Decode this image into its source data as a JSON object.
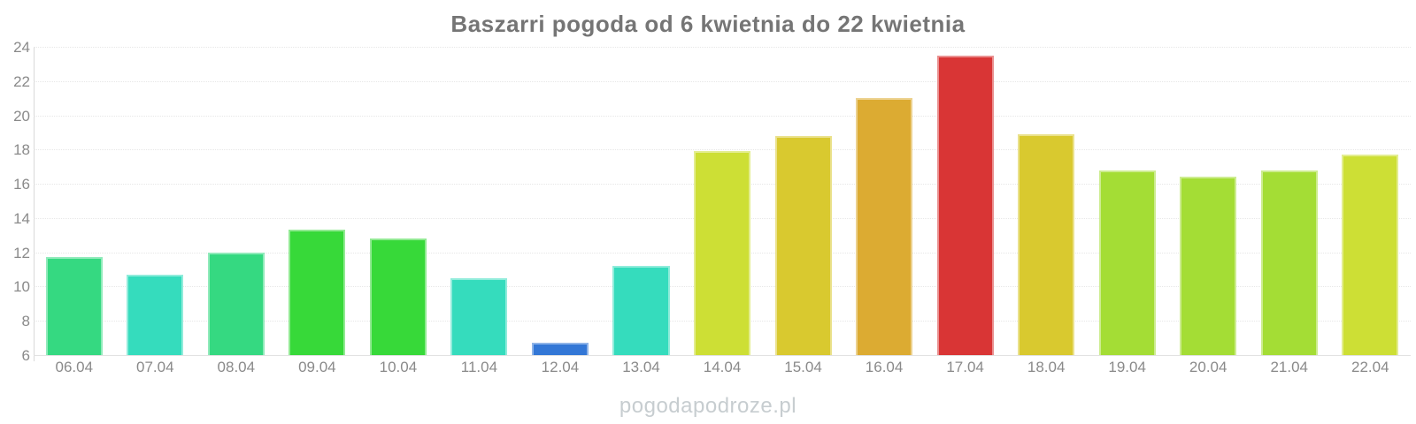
{
  "title": "Baszarri pogoda od 6 kwietnia do 22 kwietnia",
  "watermark": "pogodapodroze.pl",
  "colors": {
    "title_text": "#757575",
    "axis_text": "#8a8a8a",
    "gridline": "#e7e7e7",
    "axis_line": "#d9d9d9",
    "watermark_text": "#c7cdd0",
    "background": "#ffffff"
  },
  "chart_data": {
    "type": "bar",
    "title": "Baszarri pogoda od 6 kwietnia do 22 kwietnia",
    "xlabel": "",
    "ylabel": "",
    "ylim": [
      6,
      24
    ],
    "yticks": [
      6,
      8,
      10,
      12,
      14,
      16,
      18,
      20,
      22,
      24
    ],
    "grid": true,
    "legend": false,
    "categories": [
      "06.04",
      "07.04",
      "08.04",
      "09.04",
      "10.04",
      "11.04",
      "12.04",
      "13.04",
      "14.04",
      "15.04",
      "16.04",
      "17.04",
      "18.04",
      "19.04",
      "20.04",
      "21.04",
      "22.04"
    ],
    "values": [
      11.7,
      10.7,
      12.0,
      13.3,
      12.8,
      10.5,
      6.7,
      11.2,
      17.9,
      18.8,
      21.0,
      23.5,
      18.9,
      16.8,
      16.4,
      16.8,
      17.7
    ],
    "bar_colors": [
      "#35d981",
      "#35dcbd",
      "#35d981",
      "#37d939",
      "#37d939",
      "#35dcbd",
      "#3377d6",
      "#35dcbd",
      "#cddf35",
      "#d9c92f",
      "#dcab32",
      "#d93535",
      "#d9c92f",
      "#a4dd35",
      "#a4dd35",
      "#a4dd35",
      "#cddf35"
    ]
  }
}
